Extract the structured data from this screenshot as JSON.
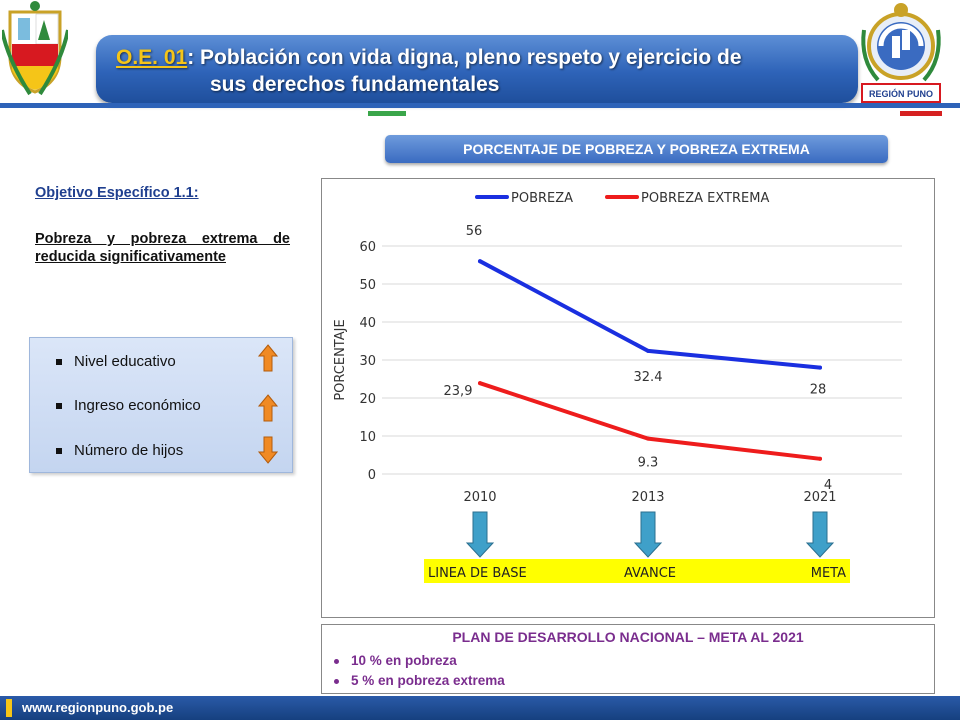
{
  "header": {
    "title_code": "O.E. 01",
    "title_line1_rest": ": Población con vida digna, pleno respeto y ejercicio de",
    "title_line2": "sus derechos fundamentales",
    "logo_right_text": "REGIÓN PUNO"
  },
  "left_panel": {
    "objective_label": "Objetivo Específico 1.1:",
    "objective_desc": "Pobreza y pobreza extrema de reducida significativamente",
    "factors": [
      {
        "label": "Nivel educativo",
        "direction": "up",
        "color": "#f08a24"
      },
      {
        "label": "Ingreso económico",
        "direction": "up",
        "color": "#f08a24"
      },
      {
        "label": "Número de hijos",
        "direction": "down",
        "color": "#f08a24"
      }
    ]
  },
  "chart_title": "PORCENTAJE DE POBREZA Y POBREZA EXTREMA",
  "chart_data": {
    "type": "line",
    "x": [
      "2010",
      "2013",
      "2021"
    ],
    "ylabel": "PORCENTAJE",
    "ylim": [
      0,
      60
    ],
    "yticks": [
      "0",
      "10",
      "20",
      "30",
      "40",
      "50",
      "60"
    ],
    "grid": true,
    "legend_position": "top",
    "series": [
      {
        "name": "POBREZA",
        "values": [
          56,
          32.4,
          28
        ],
        "labels": [
          "56",
          "32.4",
          "28"
        ],
        "color": "#1a2fe0"
      },
      {
        "name": "POBREZA EXTREMA",
        "values": [
          23.9,
          9.3,
          4
        ],
        "labels": [
          "23,9",
          "9.3",
          "4"
        ],
        "color": "#ee1c1c"
      }
    ],
    "stage_labels": [
      "LINEA DE BASE",
      "AVANCE",
      "META"
    ],
    "stage_bar_color": "#ffff00",
    "stage_arrow_color": "#3fa0c9"
  },
  "meta": {
    "title": "PLAN DE DESARROLLO NACIONAL – META AL 2021",
    "items": [
      "10 % en pobreza",
      "5   % en pobreza extrema"
    ]
  },
  "footer": {
    "url": "www.regionpuno.gob.pe"
  }
}
